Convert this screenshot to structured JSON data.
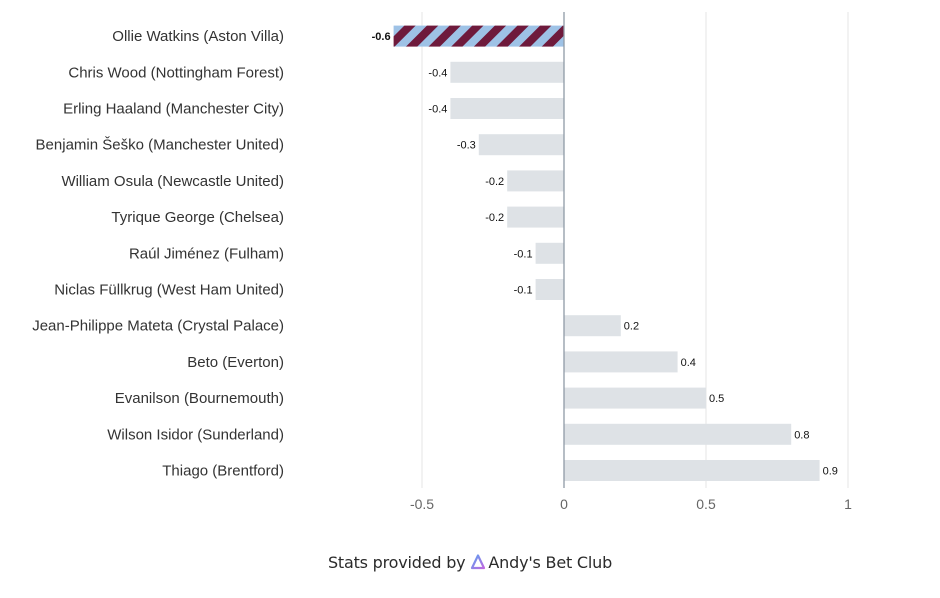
{
  "chart_data": {
    "type": "bar",
    "orientation": "horizontal",
    "categories": [
      "Ollie Watkins (Aston Villa)",
      "Chris Wood (Nottingham Forest)",
      "Erling Haaland (Manchester City)",
      "Benjamin Šeško (Manchester United)",
      "William Osula (Newcastle United)",
      "Tyrique George (Chelsea)",
      "Raúl Jiménez (Fulham)",
      "Niclas Füllkrug (West Ham United)",
      "Jean-Philippe Mateta (Crystal Palace)",
      "Beto (Everton)",
      "Evanilson (Bournemouth)",
      "Wilson Isidor (Sunderland)",
      "Thiago (Brentford)"
    ],
    "values": [
      -0.6,
      -0.4,
      -0.4,
      -0.3,
      -0.2,
      -0.2,
      -0.1,
      -0.1,
      0.2,
      0.4,
      0.5,
      0.8,
      0.9
    ],
    "data_labels": [
      "-0.6",
      "-0.4",
      "-0.4",
      "-0.3",
      "-0.2",
      "-0.2",
      "-0.1",
      "-0.1",
      "0.2",
      "0.4",
      "0.5",
      "0.8",
      "0.9"
    ],
    "highlight_index": 0,
    "xlim": [
      -0.6,
      1
    ],
    "xticks": [
      -0.5,
      0,
      0.5,
      1
    ],
    "xtick_labels": [
      "-0.5",
      "0",
      "0.5",
      "1"
    ],
    "grid": true,
    "title": "",
    "xlabel": "",
    "ylabel": "",
    "colors": {
      "bar": "#dee2e6",
      "highlight_stripe_a": "#6e1a3c",
      "highlight_stripe_b": "#9ec2e6",
      "grid": "#e6e6e6",
      "zero_line": "#8f9aa6"
    }
  },
  "footer": {
    "prefix": "Stats provided by",
    "brand": "Andy's Bet Club",
    "logo_icon": "andys-bet-club-logo-icon"
  }
}
